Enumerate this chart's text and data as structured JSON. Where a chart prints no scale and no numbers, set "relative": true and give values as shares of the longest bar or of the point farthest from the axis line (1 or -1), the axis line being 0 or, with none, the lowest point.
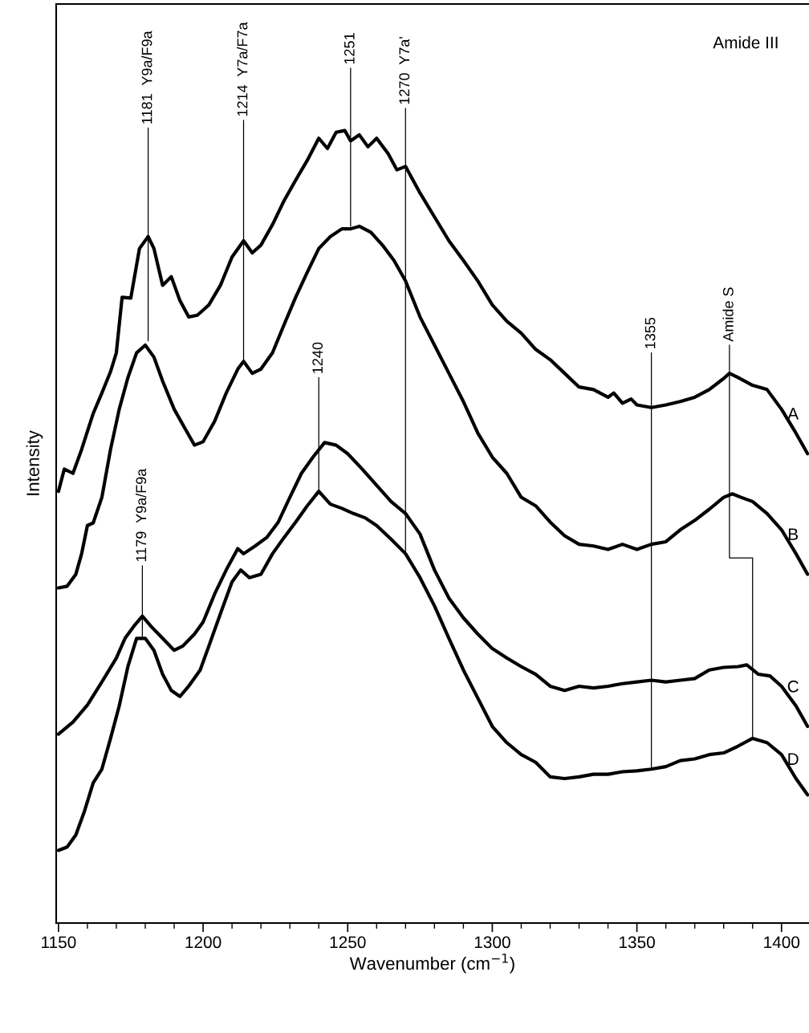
{
  "chart_data": {
    "type": "line",
    "relative": true,
    "xlabel": "Wavenumber (cm$^{−1}$)",
    "ylabel": "Intensity",
    "xlim": [
      1149.2,
      1409.5
    ],
    "xticks": [
      1150,
      1200,
      1250,
      1300,
      1350,
      1400
    ],
    "tick_labels": "x",
    "grid": false,
    "marker": "none",
    "line_style": "solid",
    "series": [
      {
        "name": "A",
        "color": "#000000",
        "x": [
          1150,
          1152,
          1155,
          1158,
          1162,
          1165,
          1168,
          1170,
          1172,
          1175,
          1178,
          1181,
          1183,
          1186,
          1189,
          1192,
          1195,
          1198,
          1202,
          1206,
          1210,
          1214,
          1217,
          1220,
          1224,
          1228,
          1232,
          1236,
          1240,
          1243,
          1246,
          1249,
          1251,
          1254,
          1257,
          1260,
          1264,
          1267,
          1270,
          1275,
          1280,
          1285,
          1290,
          1295,
          1300,
          1305,
          1310,
          1315,
          1320,
          1325,
          1330,
          1335,
          1340,
          1342,
          1345,
          1348,
          1350,
          1355,
          1360,
          1365,
          1370,
          1375,
          1380,
          1382,
          1385,
          1390,
          1395,
          1400,
          1405,
          1409
        ],
        "values": [
          0.505,
          0.531,
          0.526,
          0.554,
          0.596,
          0.62,
          0.645,
          0.667,
          0.732,
          0.731,
          0.789,
          0.803,
          0.789,
          0.746,
          0.756,
          0.728,
          0.709,
          0.711,
          0.723,
          0.746,
          0.779,
          0.798,
          0.784,
          0.793,
          0.817,
          0.845,
          0.869,
          0.892,
          0.918,
          0.906,
          0.925,
          0.927,
          0.915,
          0.922,
          0.908,
          0.918,
          0.9,
          0.881,
          0.885,
          0.854,
          0.826,
          0.798,
          0.775,
          0.751,
          0.723,
          0.704,
          0.69,
          0.671,
          0.659,
          0.643,
          0.627,
          0.624,
          0.615,
          0.62,
          0.608,
          0.613,
          0.606,
          0.603,
          0.606,
          0.61,
          0.615,
          0.624,
          0.637,
          0.643,
          0.638,
          0.629,
          0.624,
          0.601,
          0.573,
          0.549
        ]
      },
      {
        "name": "B",
        "color": "#000000",
        "x": [
          1150,
          1153,
          1156,
          1158,
          1160,
          1162,
          1165,
          1168,
          1171,
          1174,
          1177,
          1180,
          1183,
          1186,
          1190,
          1194,
          1197,
          1200,
          1204,
          1208,
          1212,
          1214,
          1217,
          1220,
          1224,
          1228,
          1232,
          1236,
          1240,
          1244,
          1248,
          1251,
          1254,
          1258,
          1262,
          1266,
          1270,
          1275,
          1280,
          1285,
          1290,
          1295,
          1300,
          1305,
          1310,
          1315,
          1320,
          1325,
          1330,
          1335,
          1340,
          1345,
          1350,
          1355,
          1360,
          1365,
          1370,
          1375,
          1380,
          1383,
          1386,
          1390,
          1395,
          1400,
          1405,
          1409
        ],
        "values": [
          0.392,
          0.394,
          0.408,
          0.432,
          0.465,
          0.468,
          0.498,
          0.554,
          0.601,
          0.638,
          0.667,
          0.676,
          0.662,
          0.634,
          0.601,
          0.577,
          0.559,
          0.563,
          0.587,
          0.62,
          0.648,
          0.657,
          0.643,
          0.648,
          0.667,
          0.7,
          0.732,
          0.761,
          0.789,
          0.803,
          0.812,
          0.812,
          0.815,
          0.808,
          0.793,
          0.775,
          0.751,
          0.709,
          0.676,
          0.643,
          0.61,
          0.573,
          0.545,
          0.526,
          0.498,
          0.488,
          0.469,
          0.453,
          0.443,
          0.441,
          0.437,
          0.443,
          0.437,
          0.443,
          0.446,
          0.46,
          0.471,
          0.484,
          0.498,
          0.502,
          0.498,
          0.493,
          0.479,
          0.46,
          0.432,
          0.408
        ]
      },
      {
        "name": "C",
        "color": "#000000",
        "x": [
          1150,
          1155,
          1160,
          1165,
          1170,
          1173,
          1176,
          1179,
          1182,
          1186,
          1190,
          1193,
          1197,
          1200,
          1204,
          1208,
          1212,
          1214,
          1218,
          1222,
          1226,
          1230,
          1234,
          1238,
          1242,
          1246,
          1250,
          1255,
          1260,
          1265,
          1270,
          1275,
          1280,
          1285,
          1290,
          1295,
          1300,
          1305,
          1310,
          1315,
          1320,
          1325,
          1330,
          1335,
          1340,
          1345,
          1350,
          1355,
          1360,
          1365,
          1370,
          1375,
          1380,
          1385,
          1388,
          1392,
          1396,
          1400,
          1405,
          1409
        ],
        "values": [
          0.221,
          0.235,
          0.255,
          0.282,
          0.31,
          0.333,
          0.347,
          0.359,
          0.347,
          0.333,
          0.319,
          0.324,
          0.338,
          0.352,
          0.385,
          0.413,
          0.438,
          0.432,
          0.441,
          0.451,
          0.469,
          0.498,
          0.526,
          0.545,
          0.562,
          0.559,
          0.549,
          0.531,
          0.512,
          0.493,
          0.479,
          0.455,
          0.413,
          0.38,
          0.357,
          0.338,
          0.321,
          0.31,
          0.3,
          0.291,
          0.277,
          0.272,
          0.277,
          0.275,
          0.277,
          0.28,
          0.282,
          0.284,
          0.282,
          0.284,
          0.286,
          0.296,
          0.299,
          0.3,
          0.302,
          0.291,
          0.289,
          0.277,
          0.254,
          0.23
        ]
      },
      {
        "name": "D",
        "color": "#000000",
        "x": [
          1150,
          1153,
          1156,
          1159,
          1162,
          1165,
          1168,
          1171,
          1174,
          1177,
          1180,
          1183,
          1186,
          1189,
          1192,
          1195,
          1199,
          1202,
          1206,
          1210,
          1213,
          1216,
          1220,
          1224,
          1228,
          1232,
          1236,
          1240,
          1244,
          1248,
          1252,
          1256,
          1260,
          1265,
          1270,
          1275,
          1280,
          1285,
          1290,
          1295,
          1300,
          1305,
          1310,
          1315,
          1320,
          1325,
          1330,
          1335,
          1340,
          1345,
          1350,
          1355,
          1360,
          1365,
          1370,
          1375,
          1380,
          1385,
          1390,
          1395,
          1400,
          1405,
          1409
        ],
        "values": [
          0.085,
          0.089,
          0.103,
          0.131,
          0.164,
          0.18,
          0.216,
          0.254,
          0.3,
          0.333,
          0.333,
          0.319,
          0.291,
          0.272,
          0.265,
          0.277,
          0.296,
          0.324,
          0.362,
          0.399,
          0.413,
          0.404,
          0.408,
          0.432,
          0.451,
          0.469,
          0.488,
          0.505,
          0.49,
          0.485,
          0.479,
          0.474,
          0.465,
          0.449,
          0.432,
          0.404,
          0.371,
          0.333,
          0.296,
          0.263,
          0.23,
          0.211,
          0.197,
          0.188,
          0.171,
          0.169,
          0.171,
          0.174,
          0.174,
          0.177,
          0.178,
          0.18,
          0.183,
          0.19,
          0.192,
          0.197,
          0.199,
          0.207,
          0.216,
          0.211,
          0.197,
          0.169,
          0.15
        ]
      },
      {
        "type": "line",
        "color": "#000000",
        "x": [
          1181,
          1181
        ],
        "values": [
          0.93,
          0.681
        ]
      },
      {
        "type": "line",
        "color": "#000000",
        "x": [
          1214,
          1214
        ],
        "values": [
          0.939,
          0.657
        ]
      },
      {
        "type": "line",
        "color": "#000000",
        "x": [
          1251,
          1251
        ],
        "values": [
          1.0,
          0.815
        ]
      },
      {
        "type": "line",
        "color": "#000000",
        "x": [
          1270,
          1270
        ],
        "values": [
          0.953,
          0.432
        ]
      },
      {
        "type": "line",
        "color": "#000000",
        "x": [
          1240,
          1240
        ],
        "values": [
          0.638,
          0.505
        ]
      },
      {
        "type": "line",
        "color": "#000000",
        "x": [
          1179,
          1179
        ],
        "values": [
          0.418,
          0.333
        ]
      },
      {
        "type": "line",
        "color": "#000000",
        "x": [
          1355,
          1355
        ],
        "values": [
          0.667,
          0.18
        ]
      },
      {
        "type": "line",
        "color": "#000000",
        "x": [
          1382,
          1382,
          1390,
          1390
        ],
        "values": [
          0.676,
          0.427,
          0.427,
          0.216
        ]
      }
    ],
    "annotations": [
      {
        "text": "1181  Y9a/F9a",
        "x": 1181,
        "y": 0.93
      },
      {
        "text": "1214  Y7a/F7a",
        "x": 1214,
        "y": 0.939
      },
      {
        "text": "1251",
        "x": 1251,
        "y": 1.0
      },
      {
        "text": "1270  Y7a'",
        "x": 1270,
        "y": 0.953
      },
      {
        "text": "1240",
        "x": 1240,
        "y": 0.638
      },
      {
        "text": "1179  Y9a/F9a",
        "x": 1179,
        "y": 0.418
      },
      {
        "text": "1355",
        "x": 1355,
        "y": 0.667
      },
      {
        "text": "Amide S",
        "x": 1382,
        "y": 0.676
      },
      "Amide III"
    ]
  }
}
